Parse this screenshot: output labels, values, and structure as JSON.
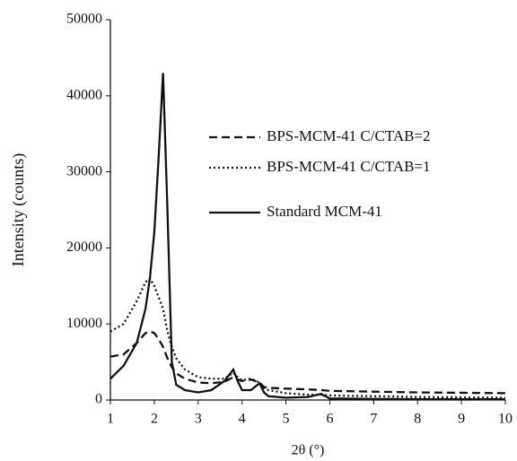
{
  "chart_data": {
    "type": "line",
    "xlabel": "2θ (°)",
    "ylabel": "Intensity (counts)",
    "x": [
      1,
      1.3,
      1.6,
      1.8,
      1.9,
      2,
      2.1,
      2.2,
      2.3,
      2.4,
      2.5,
      2.7,
      3,
      3.3,
      3.6,
      3.8,
      3.9,
      4,
      4.2,
      4.4,
      4.5,
      4.6,
      5,
      5.5,
      5.8,
      6,
      7,
      8,
      9,
      10
    ],
    "series": [
      {
        "name": "BPS-MCM-41 C/CTAB=2",
        "color": "#111111",
        "style": "dashed",
        "values": [
          5700,
          6000,
          7500,
          8800,
          9000,
          8800,
          8000,
          7000,
          5500,
          4300,
          3500,
          2800,
          2300,
          2200,
          2400,
          3000,
          2700,
          2500,
          2700,
          2300,
          1700,
          1600,
          1500,
          1400,
          1300,
          1200,
          1100,
          1000,
          950,
          900
        ]
      },
      {
        "name": "BPS-MCM-41 C/CTAB=1",
        "color": "#111111",
        "style": "dotted",
        "values": [
          9000,
          10000,
          13000,
          15500,
          16000,
          15000,
          13500,
          12000,
          9000,
          7000,
          5500,
          4000,
          3000,
          2800,
          2800,
          3600,
          3000,
          2600,
          2800,
          2300,
          1600,
          1300,
          900,
          700,
          700,
          600,
          500,
          400,
          350,
          300
        ]
      },
      {
        "name": "Standard MCM-41",
        "color": "#111111",
        "style": "solid",
        "values": [
          2800,
          4500,
          7500,
          12000,
          16000,
          22000,
          32000,
          43000,
          25000,
          5000,
          2000,
          1300,
          1000,
          1300,
          2500,
          4000,
          2500,
          1300,
          1300,
          2200,
          1000,
          500,
          300,
          400,
          800,
          200,
          150,
          100,
          100,
          100
        ]
      }
    ],
    "xlim": [
      1,
      10
    ],
    "xticks": [
      1,
      2,
      3,
      4,
      5,
      6,
      7,
      8,
      9,
      10
    ],
    "ylim": [
      0,
      50000
    ],
    "yticks": [
      0,
      10000,
      20000,
      30000,
      40000,
      50000
    ],
    "grid": false,
    "legend": "right"
  }
}
